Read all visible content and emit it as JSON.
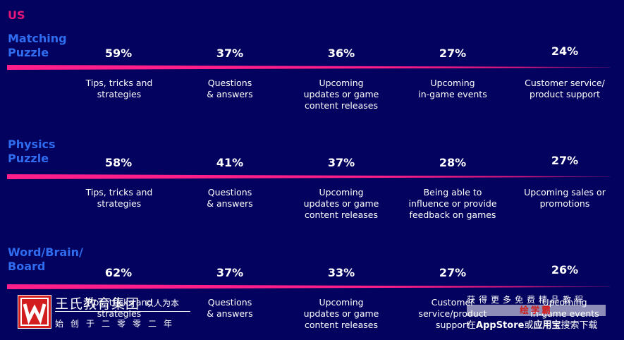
{
  "region": "US",
  "colors": {
    "background": "#03035f",
    "accent_pink": "#ff1e8a",
    "category_blue": "#2f6cf0"
  },
  "groups": [
    {
      "category": [
        "Matching",
        "Puzzle"
      ],
      "percentages": [
        "59%",
        "37%",
        "36%",
        "27%",
        "24%"
      ],
      "labels": [
        [
          "Tips, tricks and",
          "strategies"
        ],
        [
          "Questions",
          "& answers"
        ],
        [
          "Upcoming",
          "updates or game",
          "content releases"
        ],
        [
          "Upcoming",
          "in-game events"
        ],
        [
          "Customer service/",
          "product support"
        ]
      ]
    },
    {
      "category": [
        "Physics",
        "Puzzle"
      ],
      "percentages": [
        "58%",
        "41%",
        "37%",
        "28%",
        "27%"
      ],
      "labels": [
        [
          "Tips, tricks and",
          "strategies"
        ],
        [
          "Questions",
          "& answers"
        ],
        [
          "Upcoming",
          "updates or game",
          "content releases"
        ],
        [
          "Being able to",
          "influence or provide",
          "feedback on games"
        ],
        [
          "Upcoming sales or",
          "promotions"
        ]
      ]
    },
    {
      "category": [
        "Word/Brain/",
        "Board"
      ],
      "percentages": [
        "62%",
        "37%",
        "33%",
        "27%",
        "26%"
      ],
      "labels": [
        [
          "Tips, tricks and",
          "strategies"
        ],
        [
          "Questions",
          "& answers"
        ],
        [
          "Upcoming",
          "updates or game",
          "content releases"
        ],
        [
          "Customer",
          "service/product",
          "support"
        ],
        [
          "Upcoming",
          "in-game events"
        ]
      ]
    }
  ],
  "watermark": {
    "logo_icon": "w-logo-icon",
    "name": "王氏教育集团",
    "tagline": "以人为本",
    "sub": "始创于二零零二年",
    "right_line1": "获得更多免费精品教程",
    "right_line2": "绘学霸",
    "right_line3_prefix": "在",
    "right_line3_store": "AppStore",
    "right_line3_mid": "或",
    "right_line3_app": "应用宝",
    "right_line3_suffix": "搜索下载"
  }
}
